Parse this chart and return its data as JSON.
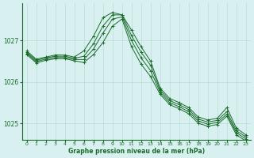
{
  "xlabel": "Graphe pression niveau de la mer (hPa)",
  "ylabel": "",
  "background_color": "#d8f0f0",
  "grid_color": "#b8ddd8",
  "line_color": "#1a6b2a",
  "marker_color": "#1a6b2a",
  "ylim": [
    1024.6,
    1027.9
  ],
  "xlim": [
    -0.5,
    23.5
  ],
  "yticks": [
    1025,
    1026,
    1027
  ],
  "xticks": [
    0,
    1,
    2,
    3,
    4,
    5,
    6,
    7,
    8,
    9,
    10,
    11,
    12,
    13,
    14,
    15,
    16,
    17,
    18,
    19,
    20,
    21,
    22,
    23
  ],
  "lines": [
    [
      1026.75,
      1026.55,
      1026.6,
      1026.65,
      1026.65,
      1026.6,
      1026.75,
      1027.1,
      1027.55,
      1027.68,
      1027.62,
      1027.25,
      1026.85,
      1026.5,
      1025.85,
      1025.6,
      1025.5,
      1025.38,
      1025.15,
      1025.08,
      1025.12,
      1025.38,
      1024.88,
      1024.72
    ],
    [
      1026.72,
      1026.52,
      1026.58,
      1026.62,
      1026.62,
      1026.57,
      1026.62,
      1026.92,
      1027.35,
      1027.62,
      1027.62,
      1027.12,
      1026.72,
      1026.4,
      1025.8,
      1025.55,
      1025.45,
      1025.33,
      1025.1,
      1025.03,
      1025.07,
      1025.28,
      1024.82,
      1024.67
    ],
    [
      1026.69,
      1026.49,
      1026.55,
      1026.59,
      1026.59,
      1026.54,
      1026.54,
      1026.79,
      1027.18,
      1027.52,
      1027.57,
      1027.0,
      1026.58,
      1026.27,
      1025.75,
      1025.5,
      1025.4,
      1025.28,
      1025.05,
      1024.98,
      1025.02,
      1025.22,
      1024.77,
      1024.62
    ],
    [
      1026.66,
      1026.46,
      1026.52,
      1026.56,
      1026.56,
      1026.51,
      1026.47,
      1026.66,
      1026.95,
      1027.35,
      1027.52,
      1026.85,
      1026.43,
      1026.13,
      1025.7,
      1025.45,
      1025.35,
      1025.23,
      1025.0,
      1024.93,
      1024.97,
      1025.17,
      1024.72,
      1024.57
    ]
  ],
  "figsize": [
    3.2,
    2.0
  ],
  "dpi": 100
}
